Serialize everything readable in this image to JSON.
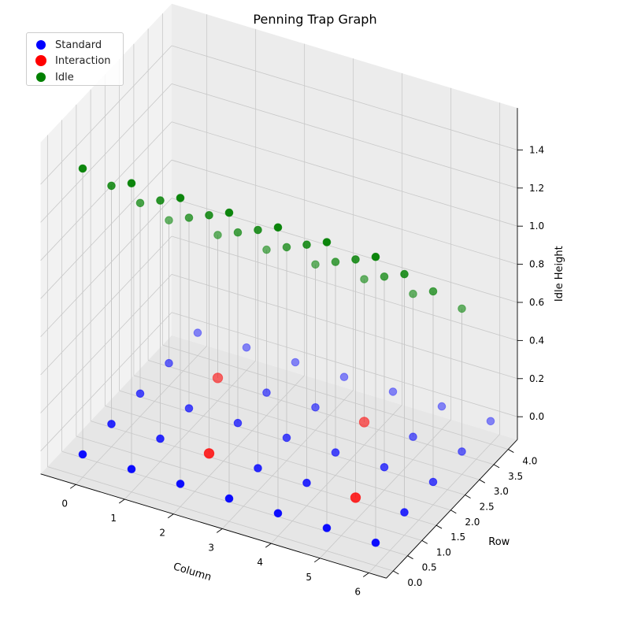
{
  "chart_data": {
    "type": "scatter",
    "projection": "3d",
    "title": "Penning Trap Graph",
    "xlabel": "Column",
    "ylabel": "Row",
    "zlabel": "Idle Height",
    "xlim": [
      0,
      6
    ],
    "ylim": [
      0,
      4
    ],
    "zlim": [
      0,
      1.5
    ],
    "x_ticks": [
      "0",
      "1",
      "2",
      "3",
      "4",
      "5",
      "6"
    ],
    "y_ticks": [
      "0.0",
      "0.5",
      "1.0",
      "1.5",
      "2.0",
      "2.5",
      "3.0",
      "3.5",
      "4.0"
    ],
    "z_ticks": [
      "0.0",
      "0.2",
      "0.4",
      "0.6",
      "0.8",
      "1.0",
      "1.2",
      "1.4"
    ],
    "grid": true,
    "legend_position": "top-left",
    "drop_lines": true,
    "series": [
      {
        "name": "Standard",
        "color": "#0000ff",
        "points": [
          [
            0,
            0,
            0
          ],
          [
            1,
            0,
            0
          ],
          [
            2,
            0,
            0
          ],
          [
            3,
            0,
            0
          ],
          [
            4,
            0,
            0
          ],
          [
            5,
            0,
            0
          ],
          [
            6,
            0,
            0
          ],
          [
            0,
            1,
            0
          ],
          [
            1,
            1,
            0
          ],
          [
            3,
            1,
            0
          ],
          [
            4,
            1,
            0
          ],
          [
            6,
            1,
            0
          ],
          [
            0,
            2,
            0
          ],
          [
            1,
            2,
            0
          ],
          [
            2,
            2,
            0
          ],
          [
            3,
            2,
            0
          ],
          [
            4,
            2,
            0
          ],
          [
            5,
            2,
            0
          ],
          [
            6,
            2,
            0
          ],
          [
            0,
            3,
            0
          ],
          [
            2,
            3,
            0
          ],
          [
            3,
            3,
            0
          ],
          [
            5,
            3,
            0
          ],
          [
            6,
            3,
            0
          ],
          [
            0,
            4,
            0
          ],
          [
            1,
            4,
            0
          ],
          [
            2,
            4,
            0
          ],
          [
            3,
            4,
            0
          ],
          [
            4,
            4,
            0
          ],
          [
            5,
            4,
            0
          ],
          [
            6,
            4,
            0
          ]
        ]
      },
      {
        "name": "Interaction",
        "color": "#ff0000",
        "points": [
          [
            2,
            1,
            0
          ],
          [
            5,
            1,
            0
          ],
          [
            1,
            3,
            0
          ],
          [
            4,
            3,
            0
          ]
        ]
      },
      {
        "name": "Idle",
        "color": "#008000",
        "points": [
          [
            0,
            0,
            1.5
          ],
          [
            1,
            0,
            1.5
          ],
          [
            2,
            0,
            1.5
          ],
          [
            3,
            0,
            1.5
          ],
          [
            4,
            0,
            1.5
          ],
          [
            5,
            0,
            1.5
          ],
          [
            6,
            0,
            1.5
          ],
          [
            0,
            1,
            1.25
          ],
          [
            1,
            1,
            1.25
          ],
          [
            2,
            1,
            1.25
          ],
          [
            3,
            1,
            1.25
          ],
          [
            4,
            1,
            1.25
          ],
          [
            5,
            1,
            1.25
          ],
          [
            6,
            1,
            1.25
          ],
          [
            0,
            2,
            1
          ],
          [
            1,
            2,
            1
          ],
          [
            2,
            2,
            1
          ],
          [
            3,
            2,
            1
          ],
          [
            4,
            2,
            1
          ],
          [
            5,
            2,
            1
          ],
          [
            6,
            2,
            1
          ],
          [
            0,
            3,
            0.75
          ],
          [
            1,
            3,
            0.75
          ],
          [
            2,
            3,
            0.75
          ],
          [
            3,
            3,
            0.75
          ],
          [
            4,
            3,
            0.75
          ],
          [
            5,
            3,
            0.75
          ],
          [
            6,
            3,
            0.75
          ]
        ]
      }
    ]
  }
}
